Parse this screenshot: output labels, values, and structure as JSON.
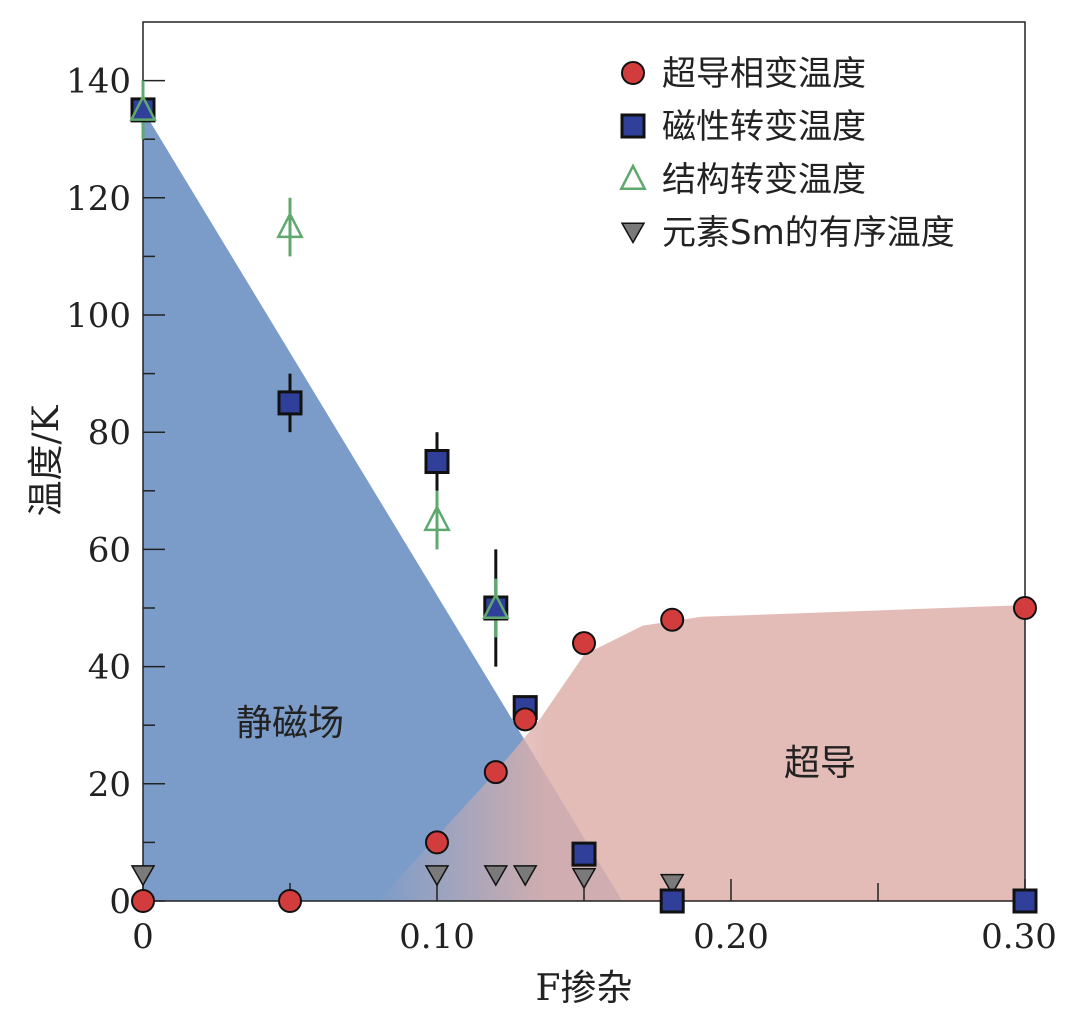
{
  "chart_data": {
    "type": "scatter",
    "title": "",
    "xlabel": "F掺杂",
    "ylabel": "温度/K",
    "xlim": [
      0,
      0.3
    ],
    "ylim": [
      0,
      150
    ],
    "x_ticks": [
      0,
      0.1,
      0.2,
      0.3
    ],
    "x_tick_labels": [
      "0",
      "0.10",
      "0.20",
      "0.30"
    ],
    "x_minor_ticks": [
      0.05,
      0.15,
      0.25
    ],
    "y_ticks": [
      0,
      20,
      40,
      60,
      80,
      100,
      120,
      140
    ],
    "y_tick_labels": [
      "0",
      "20",
      "40",
      "60",
      "80",
      "100",
      "120",
      "140"
    ],
    "legend_position": "top-right",
    "regions": [
      {
        "name": "静磁场",
        "color": "#7b9cc9"
      },
      {
        "name": "超导",
        "color": "#deb0ab"
      }
    ],
    "series": [
      {
        "name": "超导相变温度",
        "marker": "circle",
        "color": "#d23c3c",
        "points": [
          [
            0,
            0
          ],
          [
            0.05,
            0
          ],
          [
            0.1,
            10
          ],
          [
            0.12,
            22
          ],
          [
            0.13,
            31
          ],
          [
            0.15,
            44
          ],
          [
            0.18,
            48
          ],
          [
            0.3,
            50
          ]
        ]
      },
      {
        "name": "磁性转变温度",
        "marker": "square",
        "color": "#2f3f9a",
        "points": [
          [
            0,
            135
          ],
          [
            0.05,
            85
          ],
          [
            0.1,
            75
          ],
          [
            0.12,
            50
          ],
          [
            0.13,
            33
          ],
          [
            0.15,
            8
          ],
          [
            0.18,
            0
          ],
          [
            0.3,
            0
          ]
        ],
        "errors": [
          0,
          5,
          5,
          10,
          2,
          2,
          0,
          0
        ]
      },
      {
        "name": "结构转变温度",
        "marker": "triangle-up-open",
        "color": "#5fa86e",
        "points": [
          [
            0,
            135
          ],
          [
            0.05,
            115
          ],
          [
            0.1,
            65
          ],
          [
            0.12,
            50
          ]
        ],
        "errors": [
          5,
          5,
          5,
          5
        ]
      },
      {
        "name": "元素Sm的有序温度",
        "marker": "triangle-down",
        "color": "#7a7a7a",
        "points": [
          [
            0,
            4.5
          ],
          [
            0.1,
            4.5
          ],
          [
            0.12,
            4.5
          ],
          [
            0.13,
            4.5
          ],
          [
            0.15,
            4
          ],
          [
            0.18,
            3
          ]
        ]
      }
    ]
  }
}
